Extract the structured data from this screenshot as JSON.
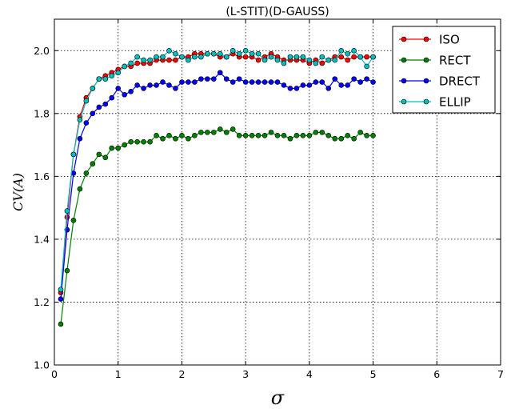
{
  "chart_data": {
    "type": "line",
    "title": "(L-STIT)(D-GAUSS)",
    "xlabel": "σ",
    "ylabel": "CV(A)",
    "xlim": [
      0,
      7
    ],
    "ylim": [
      1.0,
      2.1
    ],
    "xticks": [
      "0",
      "1",
      "2",
      "3",
      "4",
      "5",
      "6",
      "7"
    ],
    "yticks": [
      "1.0",
      "1.2",
      "1.4",
      "1.6",
      "1.8",
      "2.0"
    ],
    "grid": true,
    "legend_position": "top-right",
    "x": [
      0.1,
      0.2,
      0.3,
      0.4,
      0.5,
      0.6,
      0.7,
      0.8,
      0.9,
      1.0,
      1.1,
      1.2,
      1.3,
      1.4,
      1.5,
      1.6,
      1.7,
      1.8,
      1.9,
      2.0,
      2.1,
      2.2,
      2.3,
      2.4,
      2.5,
      2.6,
      2.7,
      2.8,
      2.9,
      3.0,
      3.1,
      3.2,
      3.3,
      3.4,
      3.5,
      3.6,
      3.7,
      3.8,
      3.9,
      4.0,
      4.1,
      4.2,
      4.3,
      4.4,
      4.5,
      4.6,
      4.7,
      4.8,
      4.9,
      5.0
    ],
    "series": [
      {
        "name": "ISO",
        "color": "#ff0000",
        "values": [
          1.23,
          1.47,
          1.67,
          1.79,
          1.85,
          1.88,
          1.91,
          1.92,
          1.93,
          1.94,
          1.95,
          1.95,
          1.96,
          1.96,
          1.96,
          1.97,
          1.97,
          1.97,
          1.97,
          1.98,
          1.98,
          1.99,
          1.99,
          1.99,
          1.99,
          1.98,
          1.98,
          1.99,
          1.98,
          1.98,
          1.98,
          1.97,
          1.98,
          1.99,
          1.98,
          1.97,
          1.97,
          1.97,
          1.97,
          1.96,
          1.97,
          1.96,
          1.97,
          1.98,
          1.98,
          1.97,
          1.98,
          1.98,
          1.98,
          1.98
        ]
      },
      {
        "name": "RECT",
        "color": "#008000",
        "values": [
          1.13,
          1.3,
          1.46,
          1.56,
          1.61,
          1.64,
          1.67,
          1.66,
          1.69,
          1.69,
          1.7,
          1.71,
          1.71,
          1.71,
          1.71,
          1.73,
          1.72,
          1.73,
          1.72,
          1.73,
          1.72,
          1.73,
          1.74,
          1.74,
          1.74,
          1.75,
          1.74,
          1.75,
          1.73,
          1.73,
          1.73,
          1.73,
          1.73,
          1.74,
          1.73,
          1.73,
          1.72,
          1.73,
          1.73,
          1.73,
          1.74,
          1.74,
          1.73,
          1.72,
          1.72,
          1.73,
          1.72,
          1.74,
          1.73,
          1.73
        ]
      },
      {
        "name": "DRECT",
        "color": "#0000ff",
        "values": [
          1.21,
          1.43,
          1.61,
          1.72,
          1.77,
          1.8,
          1.82,
          1.83,
          1.85,
          1.88,
          1.86,
          1.87,
          1.89,
          1.88,
          1.89,
          1.89,
          1.9,
          1.89,
          1.88,
          1.9,
          1.9,
          1.9,
          1.91,
          1.91,
          1.91,
          1.93,
          1.91,
          1.9,
          1.91,
          1.9,
          1.9,
          1.9,
          1.9,
          1.9,
          1.9,
          1.89,
          1.88,
          1.88,
          1.89,
          1.89,
          1.9,
          1.9,
          1.88,
          1.91,
          1.89,
          1.89,
          1.91,
          1.9,
          1.91,
          1.9
        ]
      },
      {
        "name": "ELLIP",
        "color": "#00bfbf",
        "values": [
          1.24,
          1.49,
          1.67,
          1.78,
          1.84,
          1.88,
          1.91,
          1.91,
          1.92,
          1.93,
          1.95,
          1.96,
          1.98,
          1.97,
          1.97,
          1.98,
          1.98,
          2.0,
          1.99,
          1.98,
          1.97,
          1.98,
          1.98,
          1.99,
          1.99,
          1.99,
          1.98,
          2.0,
          1.99,
          2.0,
          1.99,
          1.99,
          1.97,
          1.98,
          1.97,
          1.96,
          1.98,
          1.98,
          1.98,
          1.97,
          1.96,
          1.98,
          1.97,
          1.97,
          2.0,
          1.99,
          2.0,
          1.98,
          1.95,
          1.98
        ]
      }
    ]
  }
}
